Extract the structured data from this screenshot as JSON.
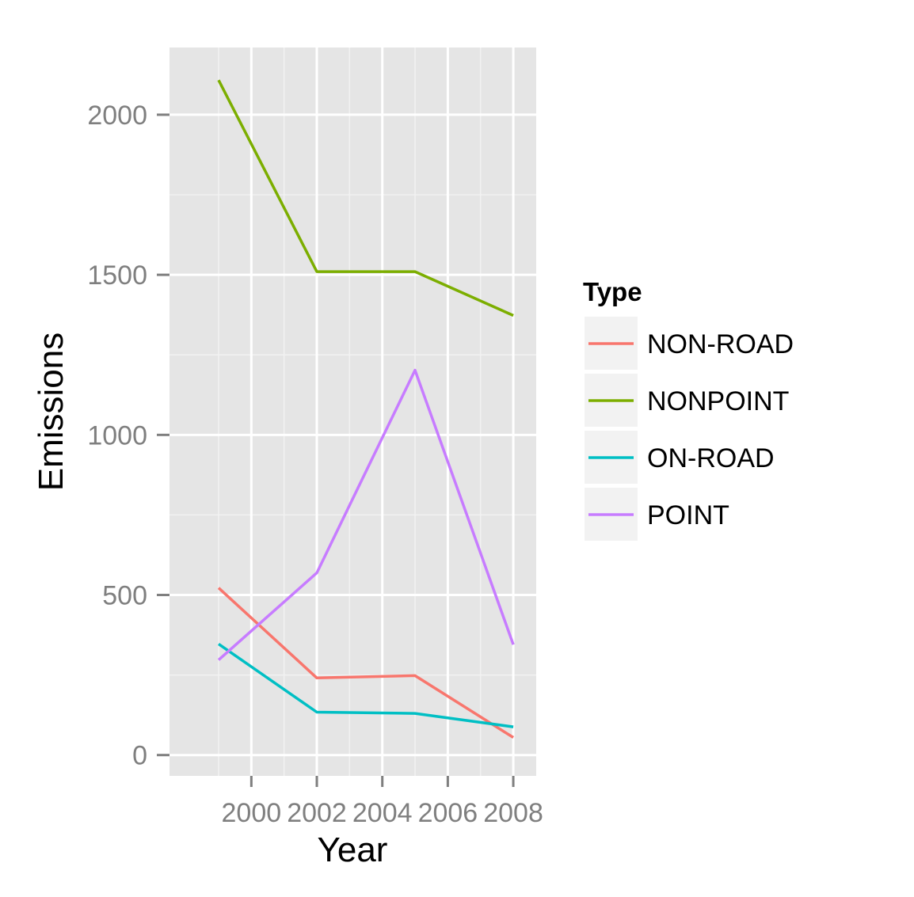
{
  "chart_data": {
    "type": "line",
    "xlabel": "Year",
    "ylabel": "Emissions",
    "x": [
      1999,
      2002,
      2005,
      2008
    ],
    "xlim": [
      1997.5,
      2008.7
    ],
    "ylim": [
      -65,
      2210
    ],
    "xticks": [
      2000,
      2002,
      2004,
      2006,
      2008
    ],
    "xtick_labels": [
      "2000",
      "2002",
      "2004",
      "2006",
      "2008"
    ],
    "yticks": [
      0,
      500,
      1000,
      1500,
      2000
    ],
    "ytick_labels": [
      "0",
      "500",
      "1000",
      "1500",
      "2000"
    ],
    "grid": true,
    "legend": {
      "title": "Type",
      "position": "right"
    },
    "series": [
      {
        "name": "NON-ROAD",
        "color": "#F8766D",
        "values": [
          522,
          241,
          248,
          55
        ]
      },
      {
        "name": "NONPOINT",
        "color": "#7CAE00",
        "values": [
          2108,
          1510,
          1510,
          1373
        ]
      },
      {
        "name": "ON-ROAD",
        "color": "#00BFC4",
        "values": [
          347,
          134,
          130,
          88
        ]
      },
      {
        "name": "POINT",
        "color": "#C77CFF",
        "values": [
          297,
          569,
          1202,
          345
        ]
      }
    ]
  }
}
